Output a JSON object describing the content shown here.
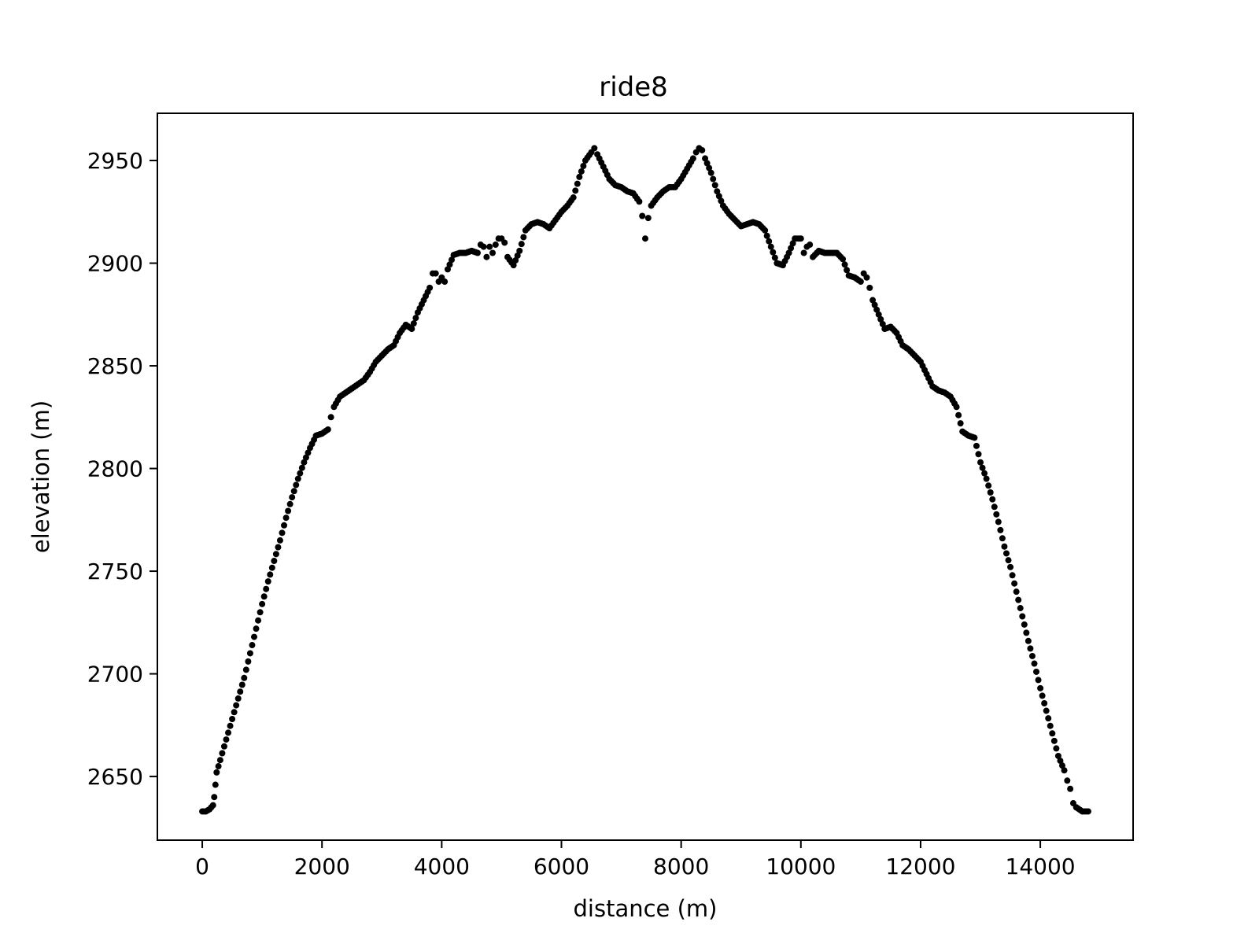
{
  "chart_data": {
    "type": "scatter",
    "title": "ride8",
    "xlabel": "distance (m)",
    "ylabel": "elevation (m)",
    "xlim": [
      -750,
      15550
    ],
    "ylim": [
      2619,
      2973
    ],
    "xticks": [
      0,
      2000,
      4000,
      6000,
      8000,
      10000,
      12000,
      14000
    ],
    "xtick_labels": [
      "0",
      "2000",
      "4000",
      "6000",
      "8000",
      "10000",
      "12000",
      "14000"
    ],
    "yticks": [
      2650,
      2700,
      2750,
      2800,
      2850,
      2900,
      2950
    ],
    "ytick_labels": [
      "2650",
      "2700",
      "2750",
      "2800",
      "2850",
      "2900",
      "2950"
    ],
    "grid": false,
    "marker_color": "#000000",
    "series": [
      {
        "points": [
          [
            0,
            2633
          ],
          [
            60,
            2633
          ],
          [
            120,
            2634
          ],
          [
            180,
            2636
          ],
          [
            200,
            2640
          ],
          [
            220,
            2646
          ],
          [
            240,
            2652
          ],
          [
            300,
            2658
          ],
          [
            400,
            2668
          ],
          [
            500,
            2678
          ],
          [
            600,
            2688
          ],
          [
            700,
            2698
          ],
          [
            800,
            2710
          ],
          [
            900,
            2722
          ],
          [
            1000,
            2734
          ],
          [
            1100,
            2745
          ],
          [
            1200,
            2755
          ],
          [
            1300,
            2765
          ],
          [
            1400,
            2776
          ],
          [
            1500,
            2786
          ],
          [
            1600,
            2795
          ],
          [
            1700,
            2803
          ],
          [
            1800,
            2810
          ],
          [
            1900,
            2816
          ],
          [
            2000,
            2817
          ],
          [
            2100,
            2819
          ],
          [
            2150,
            2825
          ],
          [
            2200,
            2830
          ],
          [
            2300,
            2835
          ],
          [
            2400,
            2837
          ],
          [
            2500,
            2839
          ],
          [
            2600,
            2841
          ],
          [
            2700,
            2843
          ],
          [
            2800,
            2847
          ],
          [
            2900,
            2852
          ],
          [
            3000,
            2855
          ],
          [
            3100,
            2858
          ],
          [
            3200,
            2860
          ],
          [
            3300,
            2866
          ],
          [
            3400,
            2870
          ],
          [
            3500,
            2868
          ],
          [
            3600,
            2876
          ],
          [
            3700,
            2882
          ],
          [
            3800,
            2888
          ],
          [
            3850,
            2895
          ],
          [
            3900,
            2895
          ],
          [
            3950,
            2891
          ],
          [
            4000,
            2893
          ],
          [
            4050,
            2891
          ],
          [
            4100,
            2897
          ],
          [
            4200,
            2904
          ],
          [
            4300,
            2905
          ],
          [
            4400,
            2905
          ],
          [
            4500,
            2906
          ],
          [
            4600,
            2905
          ],
          [
            4650,
            2909
          ],
          [
            4700,
            2908
          ],
          [
            4750,
            2903
          ],
          [
            4800,
            2908
          ],
          [
            4850,
            2905
          ],
          [
            4900,
            2909
          ],
          [
            4950,
            2912
          ],
          [
            5000,
            2912
          ],
          [
            5050,
            2910
          ],
          [
            5100,
            2903
          ],
          [
            5200,
            2899
          ],
          [
            5300,
            2906
          ],
          [
            5400,
            2916
          ],
          [
            5500,
            2919
          ],
          [
            5600,
            2920
          ],
          [
            5700,
            2919
          ],
          [
            5800,
            2917
          ],
          [
            5900,
            2921
          ],
          [
            6000,
            2925
          ],
          [
            6100,
            2928
          ],
          [
            6200,
            2932
          ],
          [
            6300,
            2942
          ],
          [
            6400,
            2950
          ],
          [
            6500,
            2954
          ],
          [
            6550,
            2956
          ],
          [
            6600,
            2953
          ],
          [
            6700,
            2947
          ],
          [
            6800,
            2941
          ],
          [
            6900,
            2938
          ],
          [
            7000,
            2937
          ],
          [
            7100,
            2935
          ],
          [
            7200,
            2934
          ],
          [
            7300,
            2930
          ],
          [
            7350,
            2923
          ],
          [
            7400,
            2912
          ],
          [
            7450,
            2922
          ],
          [
            7500,
            2928
          ],
          [
            7600,
            2932
          ],
          [
            7700,
            2935
          ],
          [
            7800,
            2937
          ],
          [
            7900,
            2937
          ],
          [
            8000,
            2941
          ],
          [
            8100,
            2946
          ],
          [
            8200,
            2951
          ],
          [
            8250,
            2954
          ],
          [
            8300,
            2956
          ],
          [
            8350,
            2955
          ],
          [
            8400,
            2951
          ],
          [
            8500,
            2944
          ],
          [
            8600,
            2935
          ],
          [
            8700,
            2928
          ],
          [
            8800,
            2924
          ],
          [
            8900,
            2921
          ],
          [
            9000,
            2918
          ],
          [
            9100,
            2919
          ],
          [
            9200,
            2920
          ],
          [
            9300,
            2919
          ],
          [
            9400,
            2916
          ],
          [
            9500,
            2908
          ],
          [
            9600,
            2900
          ],
          [
            9700,
            2899
          ],
          [
            9800,
            2905
          ],
          [
            9900,
            2912
          ],
          [
            10000,
            2912
          ],
          [
            10050,
            2905
          ],
          [
            10100,
            2908
          ],
          [
            10150,
            2909
          ],
          [
            10200,
            2903
          ],
          [
            10300,
            2906
          ],
          [
            10400,
            2905
          ],
          [
            10500,
            2905
          ],
          [
            10600,
            2905
          ],
          [
            10700,
            2902
          ],
          [
            10800,
            2894
          ],
          [
            10900,
            2893
          ],
          [
            11000,
            2891
          ],
          [
            11050,
            2895
          ],
          [
            11100,
            2893
          ],
          [
            11150,
            2888
          ],
          [
            11200,
            2882
          ],
          [
            11300,
            2875
          ],
          [
            11400,
            2868
          ],
          [
            11500,
            2869
          ],
          [
            11600,
            2866
          ],
          [
            11700,
            2860
          ],
          [
            11800,
            2858
          ],
          [
            11900,
            2855
          ],
          [
            12000,
            2852
          ],
          [
            12100,
            2846
          ],
          [
            12200,
            2840
          ],
          [
            12300,
            2838
          ],
          [
            12400,
            2837
          ],
          [
            12500,
            2835
          ],
          [
            12600,
            2830
          ],
          [
            12700,
            2818
          ],
          [
            12800,
            2816
          ],
          [
            12900,
            2815
          ],
          [
            13000,
            2803
          ],
          [
            13100,
            2795
          ],
          [
            13200,
            2785
          ],
          [
            13300,
            2774
          ],
          [
            13400,
            2762
          ],
          [
            13500,
            2752
          ],
          [
            13600,
            2740
          ],
          [
            13700,
            2728
          ],
          [
            13800,
            2716
          ],
          [
            13900,
            2705
          ],
          [
            14000,
            2693
          ],
          [
            14100,
            2682
          ],
          [
            14200,
            2671
          ],
          [
            14300,
            2660
          ],
          [
            14400,
            2653
          ],
          [
            14450,
            2648
          ],
          [
            14500,
            2644
          ],
          [
            14550,
            2637
          ],
          [
            14600,
            2635
          ],
          [
            14700,
            2633
          ],
          [
            14800,
            2633
          ]
        ]
      }
    ]
  }
}
